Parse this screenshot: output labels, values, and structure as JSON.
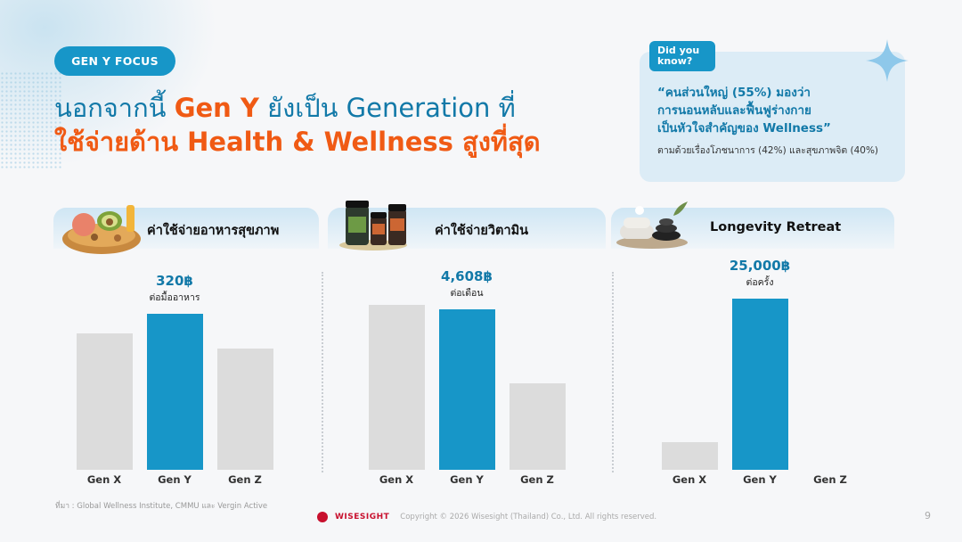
{
  "tag": "GEN Y FOCUS",
  "headline": {
    "line1_a": "นอกจากนี้ ",
    "line1_b": "Gen Y",
    "line1_c": " ยังเป็น Generation ที่",
    "line2": "ใช้จ่ายด้าน Health & Wellness สูงที่สุด"
  },
  "did_you_know": {
    "tag_line1": "Did you",
    "tag_line2": "know?",
    "quote_line1": "“คนส่วนใหญ่ (55%) มองว่า",
    "quote_line2": "การนอนหลับและฟื้นฟูร่างกาย",
    "quote_line3": "เป็นหัวใจสำคัญของ Wellness”",
    "sub": "ตามด้วยเรื่องโภชนาการ (42%) และสุขภาพจิต (40%)"
  },
  "icons": {
    "food": "healthy-food-icon",
    "vitamin": "vitamin-bottles-icon",
    "retreat": "spa-stones-icon",
    "sparkle": "sparkle-icon"
  },
  "colors": {
    "accent": "#1796c8",
    "headline_blue": "#1279a8",
    "headline_orange": "#f05a14",
    "bar_gray": "#dcdcdc",
    "bar_highlight": "#1796c8"
  },
  "chart_data": [
    {
      "type": "bar",
      "title": "ค่าใช้จ่ายอาหารสุขภาพ",
      "categories": [
        "Gen X",
        "Gen Y",
        "Gen Z"
      ],
      "values": [
        280,
        320,
        248
      ],
      "highlight_index": 1,
      "highlight_value_label": "320฿",
      "highlight_unit_label": "ต่อมื้ออาหาร",
      "ylim": [
        0,
        420
      ]
    },
    {
      "type": "bar",
      "title": "ค่าใช้จ่ายวิตามิน",
      "categories": [
        "Gen X",
        "Gen Y",
        "Gen Z"
      ],
      "values": [
        4750,
        4608,
        2480
      ],
      "highlight_index": 1,
      "highlight_value_label": "4,608฿",
      "highlight_unit_label": "ต่อเดือน",
      "ylim": [
        0,
        5900
      ]
    },
    {
      "type": "bar",
      "title": "Longevity Retreat",
      "categories": [
        "Gen X",
        "Gen Y",
        "Gen Z"
      ],
      "values": [
        4000,
        25000,
        0
      ],
      "highlight_index": 1,
      "highlight_value_label": "25,000฿",
      "highlight_unit_label": "ต่อครั้ง",
      "ylim": [
        0,
        30000
      ]
    }
  ],
  "source": "ที่มา : Global Wellness Institute, CMMU และ Vergin Active",
  "footer": {
    "logo": "WISESIGHT",
    "copyright": "Copyright © 2026 Wisesight (Thailand) Co., Ltd. All rights reserved."
  },
  "page_number": "9"
}
